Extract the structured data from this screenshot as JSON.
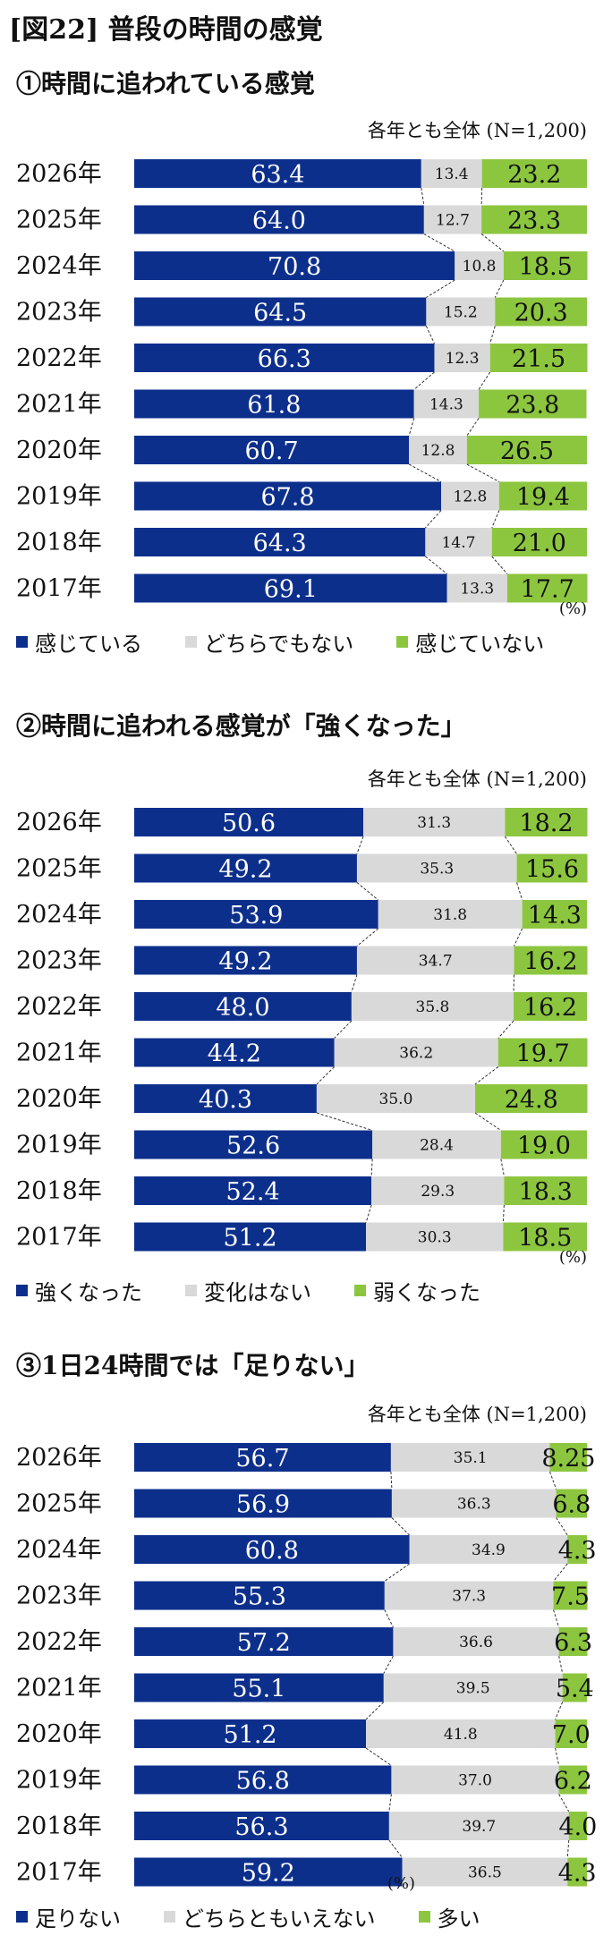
{
  "figure_title": "[図22] 普段の時間の感覚",
  "colors": {
    "blue": "#0d2f8c",
    "gray": "#d9d9d9",
    "green": "#8cc63f"
  },
  "chart_data": [
    {
      "type": "bar",
      "stacked": true,
      "orientation": "horizontal",
      "title": "①時間に追われている感覚",
      "note": "各年とも全体 (N=1,200)",
      "unit": "(%)",
      "categories": [
        "2026年",
        "2025年",
        "2024年",
        "2023年",
        "2022年",
        "2021年",
        "2020年",
        "2019年",
        "2018年",
        "2017年"
      ],
      "series": [
        {
          "name": "感じている",
          "color": "#0d2f8c",
          "values": [
            63.4,
            64.0,
            70.8,
            64.5,
            66.3,
            61.8,
            60.7,
            67.8,
            64.3,
            69.1
          ]
        },
        {
          "name": "どちらでもない",
          "color": "#d9d9d9",
          "values": [
            13.4,
            12.7,
            10.8,
            15.2,
            12.3,
            14.3,
            12.8,
            12.8,
            14.7,
            13.3
          ]
        },
        {
          "name": "感じていない",
          "color": "#8cc63f",
          "values": [
            23.2,
            23.3,
            18.5,
            20.3,
            21.5,
            23.8,
            26.5,
            19.4,
            21.0,
            17.7
          ]
        }
      ],
      "labels": [
        [
          "63.4",
          "13.4",
          "23.2"
        ],
        [
          "64.0",
          "12.7",
          "23.3"
        ],
        [
          "70.8",
          "10.8",
          "18.5"
        ],
        [
          "64.5",
          "15.2",
          "20.3"
        ],
        [
          "66.3",
          "12.3",
          "21.5"
        ],
        [
          "61.8",
          "14.3",
          "23.8"
        ],
        [
          "60.7",
          "12.8",
          "26.5"
        ],
        [
          "67.8",
          "12.8",
          "19.4"
        ],
        [
          "64.3",
          "14.7",
          "21.0"
        ],
        [
          "69.1",
          "13.3",
          "17.7"
        ]
      ],
      "xlim": [
        0,
        100
      ],
      "legend": "bottom"
    },
    {
      "type": "bar",
      "stacked": true,
      "orientation": "horizontal",
      "title": "②時間に追われる感覚が「強くなった」",
      "note": "各年とも全体 (N=1,200)",
      "unit": "(%)",
      "categories": [
        "2026年",
        "2025年",
        "2024年",
        "2023年",
        "2022年",
        "2021年",
        "2020年",
        "2019年",
        "2018年",
        "2017年"
      ],
      "series": [
        {
          "name": "強くなった",
          "color": "#0d2f8c",
          "values": [
            50.6,
            49.2,
            53.9,
            49.2,
            48.0,
            44.2,
            40.3,
            52.6,
            52.4,
            51.2
          ]
        },
        {
          "name": "変化はない",
          "color": "#d9d9d9",
          "values": [
            31.3,
            35.3,
            31.8,
            34.7,
            35.8,
            36.2,
            35.0,
            28.4,
            29.3,
            30.3
          ]
        },
        {
          "name": "弱くなった",
          "color": "#8cc63f",
          "values": [
            18.2,
            15.6,
            14.3,
            16.2,
            16.2,
            19.7,
            24.8,
            19.0,
            18.3,
            18.5
          ]
        }
      ],
      "labels": [
        [
          "50.6",
          "31.3",
          "18.2"
        ],
        [
          "49.2",
          "35.3",
          "15.6"
        ],
        [
          "53.9",
          "31.8",
          "14.3"
        ],
        [
          "49.2",
          "34.7",
          "16.2"
        ],
        [
          "48.0",
          "35.8",
          "16.2"
        ],
        [
          "44.2",
          "36.2",
          "19.7"
        ],
        [
          "40.3",
          "35.0",
          "24.8"
        ],
        [
          "52.6",
          "28.4",
          "19.0"
        ],
        [
          "52.4",
          "29.3",
          "18.3"
        ],
        [
          "51.2",
          "30.3",
          "18.5"
        ]
      ],
      "xlim": [
        0,
        100
      ],
      "legend": "bottom"
    },
    {
      "type": "bar",
      "stacked": true,
      "orientation": "horizontal",
      "title": "③1日24時間では「足りない」",
      "note": "各年とも全体 (N=1,200)",
      "unit": "(%)",
      "categories": [
        "2026年",
        "2025年",
        "2024年",
        "2023年",
        "2022年",
        "2021年",
        "2020年",
        "2019年",
        "2018年",
        "2017年"
      ],
      "series": [
        {
          "name": "足りない",
          "color": "#0d2f8c",
          "values": [
            56.7,
            56.9,
            60.8,
            55.3,
            57.2,
            55.1,
            51.2,
            56.8,
            56.3,
            59.2
          ]
        },
        {
          "name": "どちらともいえない",
          "color": "#d9d9d9",
          "values": [
            35.1,
            36.3,
            34.9,
            37.3,
            36.6,
            39.5,
            41.8,
            37.0,
            39.7,
            36.5
          ]
        },
        {
          "name": "多い",
          "color": "#8cc63f",
          "values": [
            8.25,
            6.8,
            4.3,
            7.5,
            6.3,
            5.4,
            7.0,
            6.2,
            4.0,
            4.3
          ]
        }
      ],
      "labels": [
        [
          "56.7",
          "35.1",
          "8.25"
        ],
        [
          "56.9",
          "36.3",
          "6.8"
        ],
        [
          "60.8",
          "34.9",
          "4.3"
        ],
        [
          "55.3",
          "37.3",
          "7.5"
        ],
        [
          "57.2",
          "36.6",
          "6.3"
        ],
        [
          "55.1",
          "39.5",
          "5.4"
        ],
        [
          "51.2",
          "41.8",
          "7.0"
        ],
        [
          "56.8",
          "37.0",
          "6.2"
        ],
        [
          "56.3",
          "39.7",
          "4.0"
        ],
        [
          "59.2",
          "36.5",
          "4.3"
        ]
      ],
      "xlim": [
        0,
        100
      ],
      "legend": "bottom"
    }
  ]
}
